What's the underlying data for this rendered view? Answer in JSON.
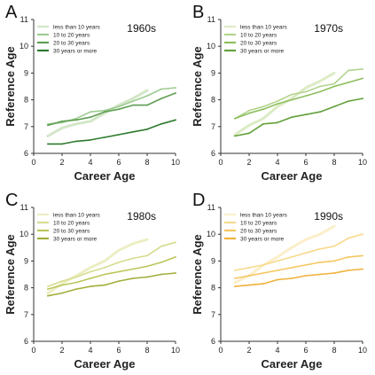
{
  "chart_data": [
    {
      "type": "line",
      "panel_letter": "A",
      "decade_label": "1960s",
      "xlabel": "Career Age",
      "ylabel": "Reference Age",
      "xlim": [
        0,
        10
      ],
      "ylim": [
        6,
        11
      ],
      "x_ticks": [
        "0",
        "2",
        "4",
        "6",
        "8",
        "10"
      ],
      "y_ticks": [
        "6",
        "7",
        "8",
        "9",
        "10",
        "11"
      ],
      "grid": false,
      "legend_position": "top-left",
      "series": [
        {
          "name": "less than 10 years",
          "color": "#d3e6c8",
          "x": [
            1,
            2,
            3,
            4,
            5,
            6,
            7,
            8
          ],
          "y": [
            6.65,
            6.95,
            7.1,
            7.2,
            7.5,
            7.8,
            8.05,
            8.35
          ]
        },
        {
          "name": "10 to 20 years",
          "color": "#9dcb90",
          "x": [
            1,
            2,
            3,
            4,
            5,
            6,
            7,
            8,
            9,
            10
          ],
          "y": [
            7.1,
            7.15,
            7.3,
            7.55,
            7.6,
            7.75,
            7.95,
            8.15,
            8.4,
            8.45
          ]
        },
        {
          "name": "20 to 30 years",
          "color": "#5f9e52",
          "x": [
            1,
            2,
            3,
            4,
            5,
            6,
            7,
            8,
            9,
            10
          ],
          "y": [
            7.05,
            7.2,
            7.25,
            7.35,
            7.55,
            7.65,
            7.8,
            7.8,
            8.05,
            8.25
          ]
        },
        {
          "name": "30 years or more",
          "color": "#2f7a2f",
          "x": [
            1,
            2,
            3,
            4,
            5,
            6,
            7,
            8,
            9,
            10
          ],
          "y": [
            6.35,
            6.35,
            6.45,
            6.5,
            6.6,
            6.7,
            6.8,
            6.9,
            7.1,
            7.25
          ]
        }
      ]
    },
    {
      "type": "line",
      "panel_letter": "B",
      "decade_label": "1970s",
      "xlabel": "Career Age",
      "ylabel": "Reference Age",
      "xlim": [
        0,
        10
      ],
      "ylim": [
        6,
        11
      ],
      "x_ticks": [
        "0",
        "2",
        "4",
        "6",
        "8",
        "10"
      ],
      "y_ticks": [
        "6",
        "7",
        "8",
        "9",
        "10",
        "11"
      ],
      "grid": false,
      "legend_position": "top-left",
      "series": [
        {
          "name": "less than 10 years",
          "color": "#dcebc4",
          "x": [
            1,
            2,
            3,
            4,
            5,
            6,
            7,
            8
          ],
          "y": [
            6.7,
            7.05,
            7.3,
            7.75,
            8.05,
            8.45,
            8.7,
            9.0
          ]
        },
        {
          "name": "10 to 20 years",
          "color": "#b3d48e",
          "x": [
            1,
            2,
            3,
            4,
            5,
            6,
            7,
            8,
            9,
            10
          ],
          "y": [
            7.3,
            7.6,
            7.75,
            7.95,
            8.2,
            8.3,
            8.5,
            8.6,
            9.1,
            9.15
          ]
        },
        {
          "name": "20 to 30 years",
          "color": "#8dbf5c",
          "x": [
            1,
            2,
            3,
            4,
            5,
            6,
            7,
            8,
            9,
            10
          ],
          "y": [
            7.3,
            7.5,
            7.65,
            7.85,
            8.0,
            8.15,
            8.3,
            8.5,
            8.65,
            8.8
          ]
        },
        {
          "name": "30 years or more",
          "color": "#62a03a",
          "x": [
            1,
            2,
            3,
            4,
            5,
            6,
            7,
            8,
            9,
            10
          ],
          "y": [
            6.65,
            6.75,
            7.1,
            7.15,
            7.35,
            7.45,
            7.55,
            7.75,
            7.95,
            8.05
          ]
        }
      ]
    },
    {
      "type": "line",
      "panel_letter": "C",
      "decade_label": "1980s",
      "xlabel": "Career Age",
      "ylabel": "Reference Age",
      "xlim": [
        0,
        10
      ],
      "ylim": [
        6,
        11
      ],
      "x_ticks": [
        "0",
        "2",
        "4",
        "6",
        "8",
        "10"
      ],
      "y_ticks": [
        "6",
        "7",
        "8",
        "9",
        "10",
        "11"
      ],
      "grid": false,
      "legend_position": "top-left",
      "series": [
        {
          "name": "less than 10 years",
          "color": "#eceec3",
          "x": [
            1,
            2,
            3,
            4,
            5,
            6,
            7,
            8
          ],
          "y": [
            7.8,
            8.15,
            8.45,
            8.75,
            9.0,
            9.4,
            9.65,
            9.8
          ]
        },
        {
          "name": "10 to 20 years",
          "color": "#d6dc8e",
          "x": [
            1,
            2,
            3,
            4,
            5,
            6,
            7,
            8,
            9,
            10
          ],
          "y": [
            8.05,
            8.25,
            8.4,
            8.6,
            8.75,
            8.95,
            9.1,
            9.2,
            9.55,
            9.7
          ]
        },
        {
          "name": "20 to 30 years",
          "color": "#bcc659",
          "x": [
            1,
            2,
            3,
            4,
            5,
            6,
            7,
            8,
            9,
            10
          ],
          "y": [
            7.95,
            8.1,
            8.2,
            8.35,
            8.5,
            8.6,
            8.7,
            8.8,
            8.95,
            9.15
          ]
        },
        {
          "name": "30 years or more",
          "color": "#a2ae3a",
          "x": [
            1,
            2,
            3,
            4,
            5,
            6,
            7,
            8,
            9,
            10
          ],
          "y": [
            7.7,
            7.8,
            7.95,
            8.05,
            8.1,
            8.25,
            8.35,
            8.4,
            8.5,
            8.55
          ]
        }
      ]
    },
    {
      "type": "line",
      "panel_letter": "D",
      "decade_label": "1990s",
      "xlabel": "Career Age",
      "ylabel": "Reference Age",
      "xlim": [
        0,
        10
      ],
      "ylim": [
        6,
        11
      ],
      "x_ticks": [
        "0",
        "2",
        "4",
        "6",
        "8",
        "10"
      ],
      "y_ticks": [
        "6",
        "7",
        "8",
        "9",
        "10",
        "11"
      ],
      "grid": false,
      "legend_position": "top-left",
      "series": [
        {
          "name": "less than 10 years",
          "color": "#fbeec9",
          "x": [
            1,
            2,
            3,
            4,
            5,
            6,
            7,
            8
          ],
          "y": [
            8.2,
            8.45,
            8.85,
            9.15,
            9.5,
            9.8,
            10.0,
            10.3
          ]
        },
        {
          "name": "10 to 20 years",
          "color": "#f8d98c",
          "x": [
            1,
            2,
            3,
            4,
            5,
            6,
            7,
            8,
            9,
            10
          ],
          "y": [
            8.65,
            8.75,
            8.85,
            9.0,
            9.15,
            9.3,
            9.45,
            9.55,
            9.85,
            10.0
          ]
        },
        {
          "name": "20 to 30 years",
          "color": "#f5c760",
          "x": [
            1,
            2,
            3,
            4,
            5,
            6,
            7,
            8,
            9,
            10
          ],
          "y": [
            8.35,
            8.45,
            8.55,
            8.65,
            8.75,
            8.85,
            8.95,
            9.0,
            9.15,
            9.2
          ]
        },
        {
          "name": "30 years or more",
          "color": "#f0b23c",
          "x": [
            1,
            2,
            3,
            4,
            5,
            6,
            7,
            8,
            9,
            10
          ],
          "y": [
            8.05,
            8.1,
            8.15,
            8.3,
            8.35,
            8.45,
            8.5,
            8.55,
            8.65,
            8.7
          ]
        }
      ]
    }
  ]
}
